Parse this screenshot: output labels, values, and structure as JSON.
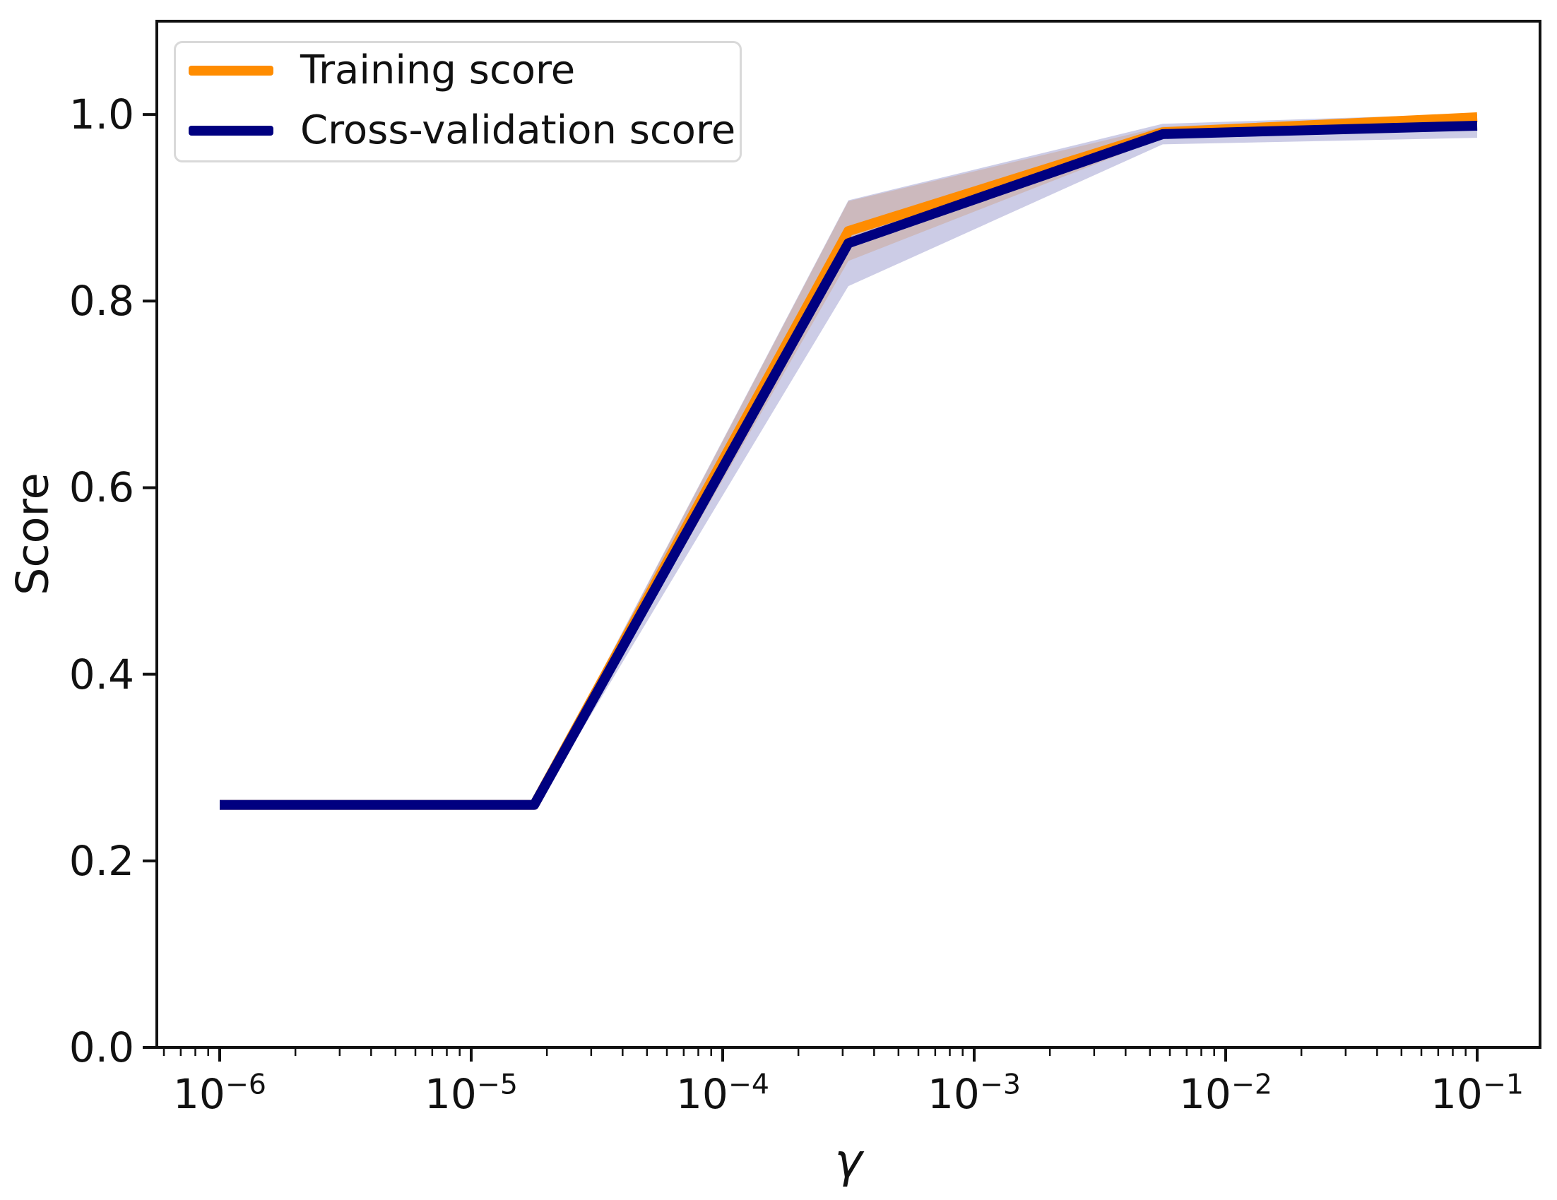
{
  "figure": {
    "background": "#ffffff",
    "text_color": "#111111"
  },
  "legend": {
    "position": "upper-left",
    "items": [
      {
        "label": "Training score",
        "color": "#ff8c00"
      },
      {
        "label": "Cross-validation score",
        "color": "#000080"
      }
    ]
  },
  "chart_data": {
    "type": "line",
    "title": "",
    "xlabel": "γ",
    "ylabel": "Score",
    "x_scale": "log",
    "x": [
      1e-06,
      1.78e-05,
      0.000316,
      0.00562,
      0.1
    ],
    "series": [
      {
        "id": "training",
        "name": "Training score",
        "color": "#ff8c00",
        "mean": [
          0.26,
          0.26,
          0.875,
          0.981,
          0.997
        ],
        "std": [
          0.004,
          0.004,
          0.032,
          0.006,
          0.003
        ]
      },
      {
        "id": "cross_validation",
        "name": "Cross-validation score",
        "color": "#000080",
        "mean": [
          0.26,
          0.26,
          0.862,
          0.979,
          0.988
        ],
        "std": [
          0.005,
          0.005,
          0.046,
          0.011,
          0.013
        ]
      }
    ],
    "band_alpha": 0.2,
    "line_width": 14,
    "xlim_log10": [
      -6.25,
      -0.75
    ],
    "ylim": [
      0.0,
      1.1
    ],
    "xticks_exp": [
      -6,
      -5,
      -4,
      -3,
      -2,
      -1
    ],
    "yticks": [
      0.0,
      0.2,
      0.4,
      0.6,
      0.8,
      1.0
    ],
    "grid": false,
    "legend_position": "upper left"
  }
}
